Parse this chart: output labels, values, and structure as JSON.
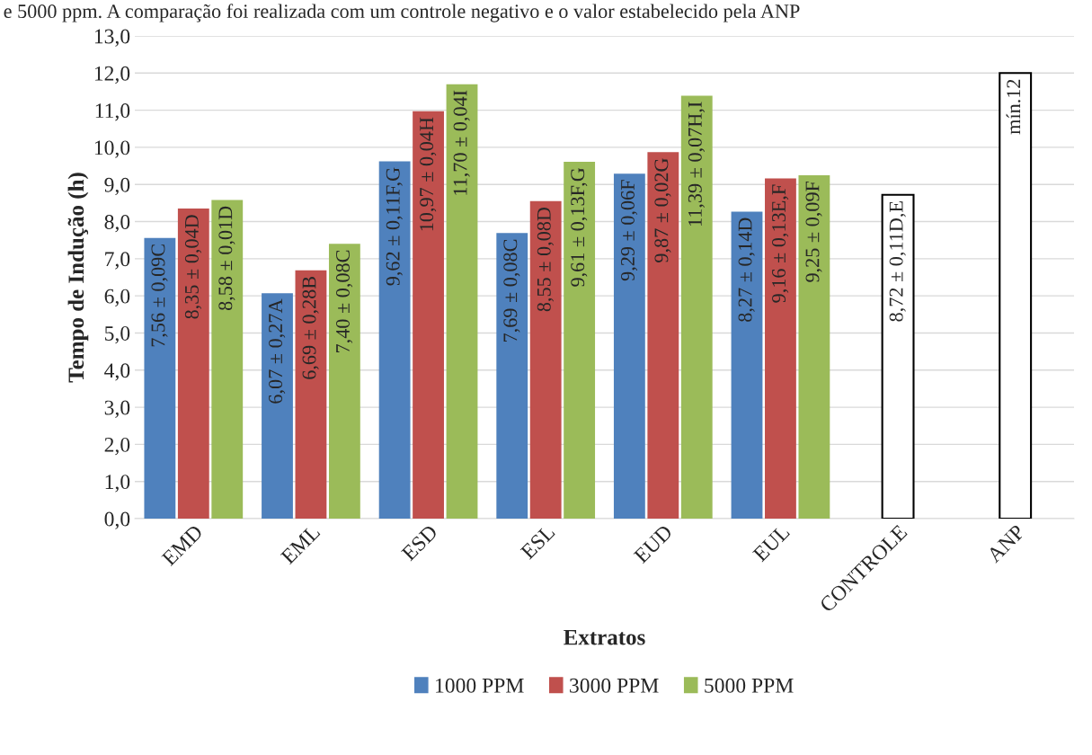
{
  "chart_data": {
    "type": "bar",
    "xlabel": "Extratos",
    "ylabel": "Tempo de Indução (h)",
    "annotations": [
      "e 5000 ppm. A comparação foi realizada com um controle negativo e o valor estabelecido pela ANP"
    ],
    "categories": [
      "EMD",
      "EML",
      "ESD",
      "ESL",
      "EUD",
      "EUL",
      "CONTROLE",
      "ANP"
    ],
    "series": [
      {
        "name": "1000 PPM",
        "color": "#4f81bd",
        "values": [
          7.56,
          6.07,
          9.62,
          7.69,
          9.29,
          8.27,
          null,
          null
        ],
        "value_labels": [
          "7,56 ± 0,09C",
          "6,07 ± 0,27A",
          "9,62 ± 0,11F,G",
          "7,69 ± 0,08C",
          "9,29 ± 0,06F",
          "8,27 ± 0,14D",
          null,
          null
        ]
      },
      {
        "name": "3000 PPM",
        "color": "#c0504d",
        "values": [
          8.35,
          6.69,
          10.97,
          8.55,
          9.87,
          9.16,
          null,
          null
        ],
        "value_labels": [
          "8,35 ± 0,04D",
          "6,69 ± 0,28B",
          "10,97 ± 0,04H",
          "8,55 ± 0,08D",
          "9,87 ± 0,02G",
          "9,16 ± 0,13E,F",
          null,
          null
        ]
      },
      {
        "name": "5000 PPM",
        "color": "#9bbb59",
        "values": [
          8.58,
          7.4,
          11.7,
          9.61,
          11.39,
          9.25,
          null,
          null
        ],
        "value_labels": [
          "8,58 ± 0,01D",
          "7,40 ± 0,08C",
          "11,70 ± 0,04I",
          "9,61 ± 0,13F,G",
          "11,39 ± 0,07H,I",
          "9,25 ± 0,09F",
          null,
          null
        ]
      },
      {
        "color": "#ffffff",
        "values": [
          null,
          null,
          null,
          null,
          null,
          null,
          8.72,
          12
        ],
        "value_labels": [
          null,
          null,
          null,
          null,
          null,
          null,
          "8,72 ± 0,11D,E",
          "mín.12"
        ]
      }
    ],
    "ylim": [
      0,
      13
    ],
    "yticks": [
      {
        "value": 0,
        "label": "0,0"
      },
      {
        "value": 1,
        "label": "1,0"
      },
      {
        "value": 2,
        "label": "2,0"
      },
      {
        "value": 3,
        "label": "3,0"
      },
      {
        "value": 4,
        "label": "4,0"
      },
      {
        "value": 5,
        "label": "5,0"
      },
      {
        "value": 6,
        "label": "6,0"
      },
      {
        "value": 7,
        "label": "7,0"
      },
      {
        "value": 8,
        "label": "8,0"
      },
      {
        "value": 9,
        "label": "9,0"
      },
      {
        "value": 10,
        "label": "10,0"
      },
      {
        "value": 11,
        "label": "11,0"
      },
      {
        "value": 12,
        "label": "12,0"
      },
      {
        "value": 13,
        "label": "13,0"
      }
    ],
    "grid": "y",
    "legend": "bottom"
  }
}
